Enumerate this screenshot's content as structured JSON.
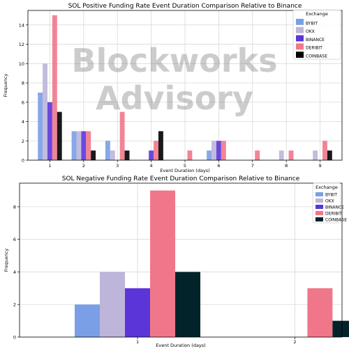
{
  "watermark": "Blockworks Advisory",
  "colors": {
    "BYBIT": "#7a9fe6",
    "OKX": "#bdb5da",
    "BINANCE": "#5b35d8",
    "DERIBIT": "#f07789",
    "COINBASE": "#000000",
    "COINBASE_BOTTOM": "#03232a"
  },
  "chart_data": [
    {
      "type": "bar",
      "title": "SOL Positive Funding Rate Event Duration Comparison Relative to Binance",
      "xlabel": "Event Duration (days)",
      "ylabel": "Frequency",
      "ylim": [
        0,
        15.5
      ],
      "yticks": [
        "0",
        "2",
        "4",
        "6",
        "8",
        "10",
        "12",
        "14"
      ],
      "categories": [
        "1",
        "2",
        "3",
        "4",
        "5",
        "6",
        "7",
        "8",
        "9"
      ],
      "legend_title": "Exchange",
      "legend_position": "top-right",
      "grid": true,
      "series": [
        {
          "name": "BYBIT",
          "values": [
            7,
            3,
            2,
            0,
            0,
            1,
            0,
            0,
            0
          ]
        },
        {
          "name": "OKX",
          "values": [
            10,
            3,
            1,
            0,
            0,
            2,
            0,
            1,
            1
          ]
        },
        {
          "name": "BINANCE",
          "values": [
            6,
            3,
            0,
            1,
            0,
            2,
            0,
            0,
            0
          ]
        },
        {
          "name": "DERIBIT",
          "values": [
            15,
            3,
            5,
            2,
            1,
            2,
            1,
            1,
            2
          ]
        },
        {
          "name": "COINBASE",
          "values": [
            5,
            1,
            1,
            3,
            0,
            0,
            0,
            0,
            1
          ]
        }
      ]
    },
    {
      "type": "bar",
      "title": "SOL Negative Funding Rate Event Duration Comparison Relative to Binance",
      "xlabel": "Event Duration (days)",
      "ylabel": "Frequency",
      "ylim": [
        0,
        9.45
      ],
      "yticks": [
        "0",
        "2",
        "4",
        "6",
        "8"
      ],
      "categories": [
        "1",
        "2"
      ],
      "legend_title": "Exchange",
      "legend_position": "top-right",
      "grid": true,
      "series": [
        {
          "name": "BYBIT",
          "values": [
            2,
            0
          ]
        },
        {
          "name": "OKX",
          "values": [
            4,
            0
          ]
        },
        {
          "name": "BINANCE",
          "values": [
            3,
            0
          ]
        },
        {
          "name": "DERIBIT",
          "values": [
            9,
            3
          ]
        },
        {
          "name": "COINBASE",
          "values": [
            4,
            1
          ]
        }
      ]
    }
  ]
}
